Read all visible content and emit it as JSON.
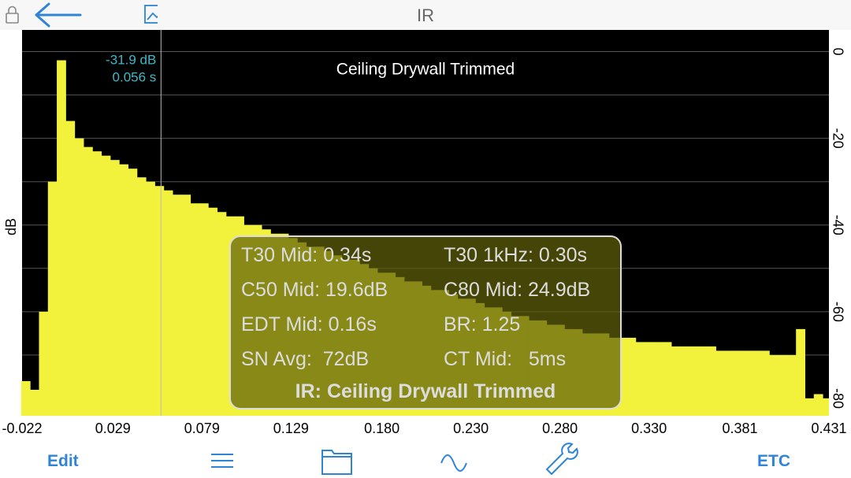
{
  "header": {
    "title": "IR"
  },
  "chart_data": {
    "type": "bar",
    "title": "Ceiling Drywall Trimmed",
    "y_label": "dB",
    "color": "#f2f23c",
    "background": "#000000",
    "x": [
      -0.02,
      -0.015,
      -0.01,
      -0.005,
      0.0,
      0.005,
      0.01,
      0.015,
      0.02,
      0.025,
      0.03,
      0.035,
      0.04,
      0.045,
      0.05,
      0.055,
      0.06,
      0.065,
      0.07,
      0.075,
      0.08,
      0.085,
      0.09,
      0.095,
      0.1,
      0.105,
      0.11,
      0.115,
      0.12,
      0.125,
      0.13,
      0.135,
      0.14,
      0.145,
      0.15,
      0.155,
      0.16,
      0.165,
      0.17,
      0.175,
      0.18,
      0.185,
      0.19,
      0.195,
      0.2,
      0.205,
      0.21,
      0.215,
      0.22,
      0.225,
      0.23,
      0.235,
      0.24,
      0.245,
      0.25,
      0.255,
      0.26,
      0.265,
      0.27,
      0.275,
      0.28,
      0.285,
      0.29,
      0.295,
      0.3,
      0.305,
      0.31,
      0.315,
      0.32,
      0.325,
      0.33,
      0.335,
      0.34,
      0.345,
      0.35,
      0.355,
      0.36,
      0.365,
      0.37,
      0.375,
      0.38,
      0.385,
      0.39,
      0.395,
      0.4,
      0.405,
      0.41,
      0.415,
      0.42,
      0.425,
      0.43
    ],
    "values": [
      -76,
      -78,
      -60,
      -30,
      -2,
      -16,
      -20,
      -22,
      -23,
      -24,
      -25,
      -26,
      -27,
      -29,
      -30,
      -31,
      -32,
      -33,
      -33,
      -35,
      -35,
      -36,
      -37,
      -38,
      -38,
      -40,
      -40,
      -41,
      -42,
      -42,
      -43,
      -44,
      -45,
      -45,
      -46,
      -47,
      -48,
      -48,
      -49,
      -50,
      -51,
      -51,
      -52,
      -53,
      -53,
      -54,
      -55,
      -55,
      -56,
      -57,
      -57,
      -58,
      -59,
      -59,
      -60,
      -61,
      -61,
      -62,
      -62,
      -63,
      -63,
      -64,
      -64,
      -65,
      -65,
      -65,
      -66,
      -66,
      -66,
      -67,
      -67,
      -67,
      -67,
      -68,
      -68,
      -68,
      -68,
      -68,
      -69,
      -69,
      -69,
      -69,
      -69,
      -69,
      -70,
      -70,
      -70,
      -64,
      -80,
      -79,
      -80
    ],
    "xlim": [
      -0.022,
      0.431
    ],
    "xticks": [
      -0.022,
      0.029,
      0.079,
      0.129,
      {
        "value": 0.18,
        "label": "0.180"
      },
      {
        "value": 0.23,
        "label": "0.230"
      },
      {
        "value": 0.28,
        "label": "0.280"
      },
      {
        "value": 0.33,
        "label": "0.330"
      },
      0.381,
      0.431
    ],
    "ylim": [
      -84,
      5
    ],
    "yticks": [
      0,
      -20,
      -40,
      -60,
      -80
    ],
    "ygrid": [
      0,
      -10,
      -20,
      -30,
      -40,
      -50,
      -60,
      -70,
      -80
    ],
    "cursor": {
      "x": {
        "value": 0.056,
        "label": "0.056 s"
      },
      "y": {
        "value": -31.9,
        "label": "-31.9 dB"
      }
    }
  },
  "overlay": {
    "rows": [
      [
        "T30 Mid: 0.34s",
        "T30 1kHz: 0.30s"
      ],
      [
        "C50 Mid: 19.6dB",
        "C80 Mid: 24.9dB"
      ],
      [
        "EDT Mid: 0.16s",
        "BR: 1.25"
      ],
      [
        "SN Avg:  72dB",
        "CT Mid:   5ms"
      ]
    ],
    "caption": "IR: Ceiling Drywall Trimmed"
  },
  "toolbar": {
    "left": "Edit",
    "right": "ETC"
  }
}
